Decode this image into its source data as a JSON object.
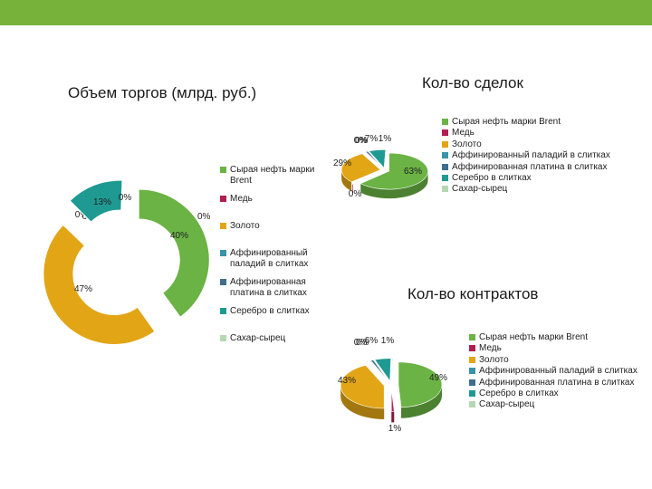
{
  "colors": {
    "brent": "#6ab344",
    "copper": "#b01f4e",
    "gold": "#e2a516",
    "palladium": "#3a93a6",
    "platinum": "#3f6f8c",
    "silver": "#1f9a92",
    "sugar": "#b5d7b2",
    "topbar": "#77b33a"
  },
  "chart_data": [
    {
      "type": "pie",
      "variant": "doughnut-exploded",
      "title": "Объем торгов (млрд. руб.)",
      "categories": [
        "Сырая нефть марки Brent",
        "Медь",
        "Золото",
        "Аффинированный паладий в слитках",
        "Аффинированная платина в слитках",
        "Серебро в слитках",
        "Сахар-сырец"
      ],
      "values": [
        40,
        0,
        47,
        0,
        0,
        13,
        0
      ],
      "value_labels": [
        "40%",
        "0%",
        "47%",
        "0%",
        "0%",
        "13%",
        "0%"
      ],
      "legend_placement": "right",
      "legend": [
        "Сырая нефть марки Brent",
        "Медь",
        "Золото",
        "Аффинированный паладий в слитках",
        "Аффинированная платина в слитках",
        "Серебро в слитках",
        "Сахар-сырец"
      ]
    },
    {
      "type": "pie",
      "variant": "3d-exploded",
      "title": "Кол-во сделок",
      "categories": [
        "Сырая нефть марки Brent",
        "Медь",
        "Золото",
        "Аффинированный паладий в слитках",
        "Аффинированная платина в слитках",
        "Серебро в слитках",
        "Сахар-сырец"
      ],
      "values": [
        63,
        0,
        29,
        0,
        1,
        7,
        0
      ],
      "value_labels": [
        "63%",
        "0%",
        "29%",
        "0%",
        "1%",
        "7%",
        "0%"
      ],
      "legend_placement": "right",
      "legend": [
        "Сырая нефть марки Brent",
        "Медь",
        "Золото",
        "Аффинированный паладий в слитках",
        "Аффинированная платина в слитках",
        "Серебро в слитках",
        "Сахар-сырец"
      ]
    },
    {
      "type": "pie",
      "variant": "3d-exploded",
      "title": "Кол-во контрактов",
      "categories": [
        "Сырая нефть марки Brent",
        "Медь",
        "Золото",
        "Аффинированный паладий в слитках",
        "Аффинированная платина в слитках",
        "Серебро в слитках",
        "Сахар-сырец"
      ],
      "values": [
        49,
        1,
        43,
        0,
        1,
        6,
        0
      ],
      "value_labels": [
        "49%",
        "1%",
        "43%",
        "0%",
        "1%",
        "6%",
        "0%"
      ],
      "legend_placement": "right",
      "legend": [
        "Сырая нефть марки Brent",
        "Медь",
        "Золото",
        "Аффинированный паладий в слитках",
        "Аффинированная платина в слитках",
        "Серебро в слитках",
        "Сахар-сырец"
      ]
    }
  ],
  "legend1": {
    "items": [
      {
        "lines": [
          "Сырая нефть марки",
          "Brent"
        ]
      },
      {
        "lines": [
          "Медь"
        ]
      },
      {
        "lines": [
          "Золото"
        ]
      },
      {
        "lines": [
          "Аффинированный",
          "паладий в слитках"
        ]
      },
      {
        "lines": [
          "Аффинированная",
          "платина в слитках"
        ]
      },
      {
        "lines": [
          "Серебро в слитках"
        ]
      },
      {
        "lines": [
          "Сахар-сырец"
        ]
      }
    ]
  },
  "legend2": [
    "Сырая нефть марки Brent",
    "Медь",
    "Золото",
    "Аффинированный паладий в слитках",
    "Аффинированная платина в слитках",
    "Серебро в слитках",
    "Сахар-сырец"
  ],
  "legend3": [
    "Сырая нефть марки Brent",
    "Медь",
    "Золото",
    "Аффинированный паладий в слитках",
    "Аффинированная платина в слитках",
    "Серебро в слитках",
    "Сахар-сырец"
  ]
}
